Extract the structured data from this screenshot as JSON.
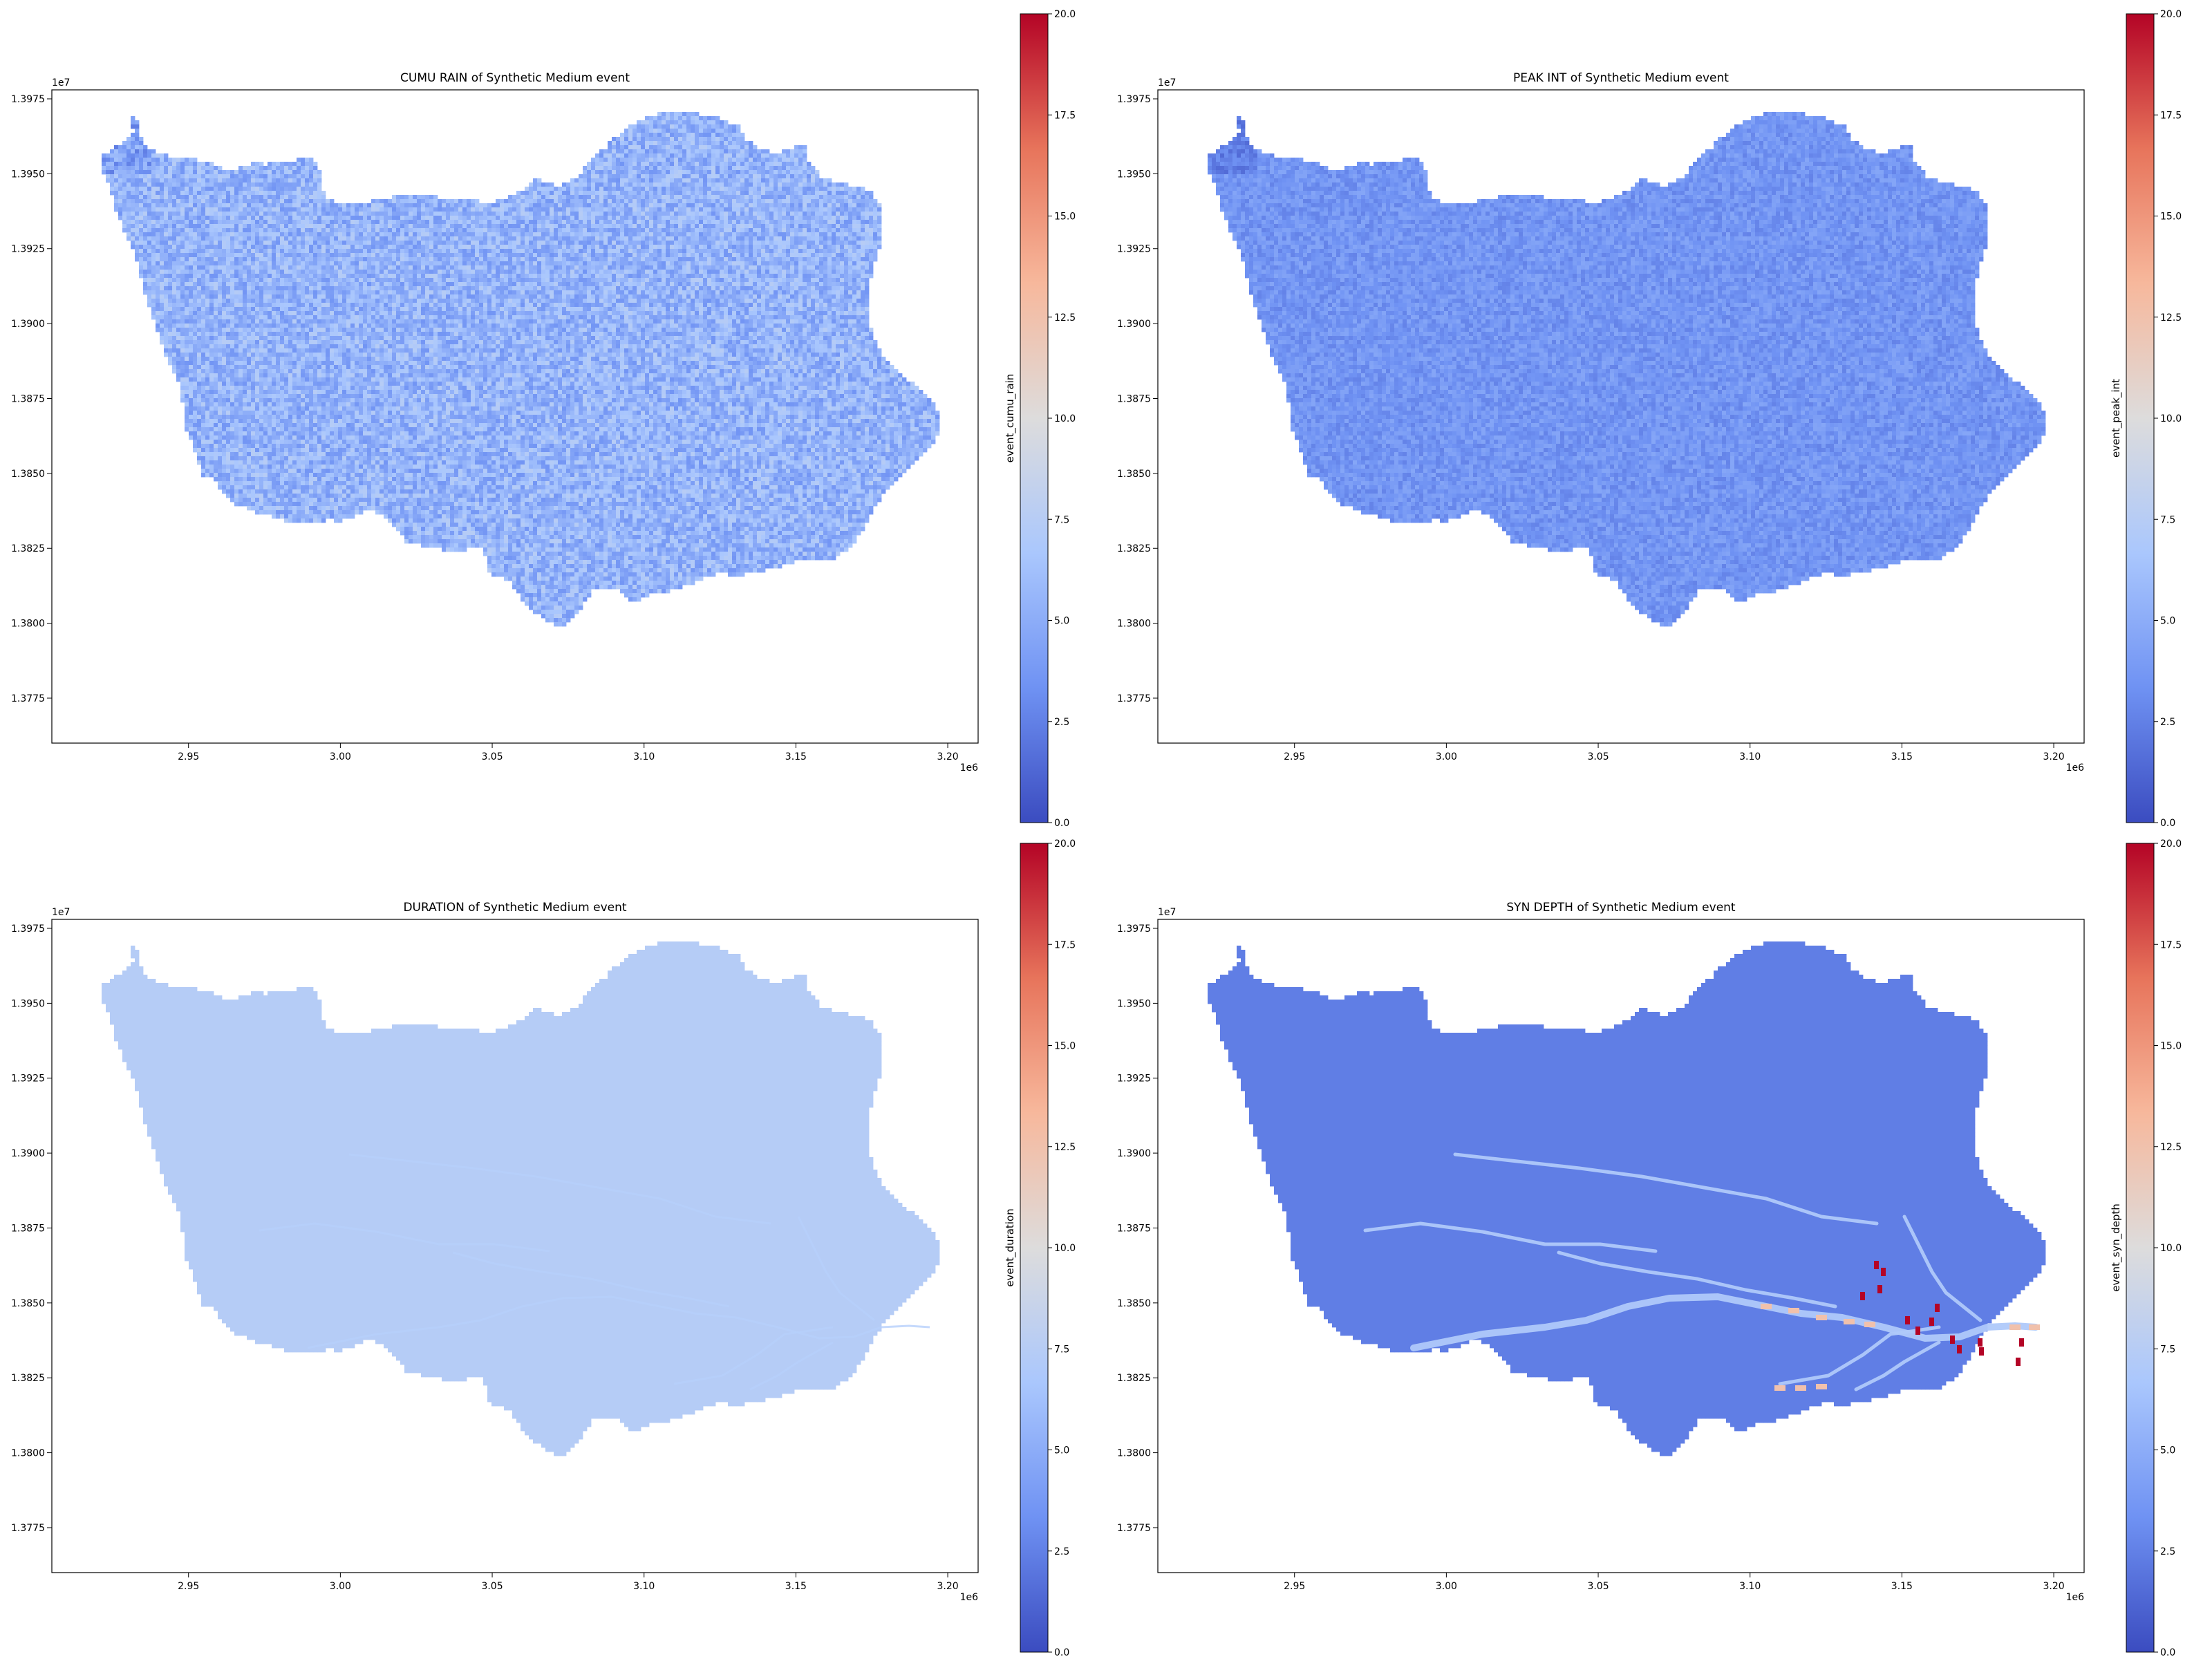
{
  "figure": {
    "cmap": "coolwarm",
    "cmap_stops": [
      "#3b4cc0",
      "#6f92f3",
      "#aac7fd",
      "#dddcdc",
      "#f7b89c",
      "#e7745b",
      "#b40426"
    ]
  },
  "chart_data": [
    {
      "type": "heatmap",
      "title": "CUMU RAIN of Synthetic Medium event",
      "colorbar_label": "event_cumu_rain",
      "clim": [
        0.0,
        20.0
      ],
      "colorbar_ticks": [
        "0.0",
        "2.5",
        "5.0",
        "7.5",
        "10.0",
        "12.5",
        "15.0",
        "17.5",
        "20.0"
      ],
      "xlim": [
        2.905,
        3.21
      ],
      "ylim": [
        1.376,
        1.3978
      ],
      "x_ticks": [
        "2.95",
        "3.00",
        "3.05",
        "3.10",
        "3.15",
        "3.20"
      ],
      "y_ticks": [
        "1.3775",
        "1.3800",
        "1.3825",
        "1.3850",
        "1.3875",
        "1.3900",
        "1.3925",
        "1.3950",
        "1.3975"
      ],
      "x_offset": "1e6",
      "y_offset": "1e7",
      "typical_value": 5.5,
      "value_spread": 2.0,
      "texture": "noise"
    },
    {
      "type": "heatmap",
      "title": "PEAK INT of Synthetic Medium event",
      "colorbar_label": "event_peak_int",
      "clim": [
        0.0,
        20.0
      ],
      "colorbar_ticks": [
        "0.0",
        "2.5",
        "5.0",
        "7.5",
        "10.0",
        "12.5",
        "15.0",
        "17.5",
        "20.0"
      ],
      "xlim": [
        2.905,
        3.21
      ],
      "ylim": [
        1.376,
        1.3978
      ],
      "x_ticks": [
        "2.95",
        "3.00",
        "3.05",
        "3.10",
        "3.15",
        "3.20"
      ],
      "y_ticks": [
        "1.3775",
        "1.3800",
        "1.3825",
        "1.3850",
        "1.3875",
        "1.3900",
        "1.3925",
        "1.3950",
        "1.3975"
      ],
      "x_offset": "1e6",
      "y_offset": "1e7",
      "typical_value": 3.6,
      "value_spread": 1.0,
      "texture": "noise"
    },
    {
      "type": "heatmap",
      "title": "DURATION of Synthetic Medium event",
      "colorbar_label": "event_duration",
      "clim": [
        0.0,
        20.0
      ],
      "colorbar_ticks": [
        "0.0",
        "2.5",
        "5.0",
        "7.5",
        "10.0",
        "12.5",
        "15.0",
        "17.5",
        "20.0"
      ],
      "xlim": [
        2.905,
        3.21
      ],
      "ylim": [
        1.376,
        1.3978
      ],
      "x_ticks": [
        "2.95",
        "3.00",
        "3.05",
        "3.10",
        "3.15",
        "3.20"
      ],
      "y_ticks": [
        "1.3775",
        "1.3800",
        "1.3825",
        "1.3850",
        "1.3875",
        "1.3900",
        "1.3925",
        "1.3950",
        "1.3975"
      ],
      "x_offset": "1e6",
      "y_offset": "1e7",
      "typical_value": 7.4,
      "value_spread": 0.0,
      "texture": "uniform"
    },
    {
      "type": "heatmap",
      "title": "SYN DEPTH of Synthetic Medium event",
      "colorbar_label": "event_syn_depth",
      "clim": [
        0.0,
        20.0
      ],
      "colorbar_ticks": [
        "0.0",
        "2.5",
        "5.0",
        "7.5",
        "10.0",
        "12.5",
        "15.0",
        "17.5",
        "20.0"
      ],
      "xlim": [
        2.905,
        3.21
      ],
      "ylim": [
        1.376,
        1.3978
      ],
      "x_ticks": [
        "2.95",
        "3.00",
        "3.05",
        "3.10",
        "3.15",
        "3.20"
      ],
      "y_ticks": [
        "1.3775",
        "1.3800",
        "1.3825",
        "1.3850",
        "1.3875",
        "1.3900",
        "1.3925",
        "1.3950",
        "1.3975"
      ],
      "x_offset": "1e6",
      "y_offset": "1e7",
      "typical_value": 2.4,
      "value_spread": 0.0,
      "texture": "uniform",
      "channel_value": 7.0,
      "hotspot_values": [
        12.5,
        20.0
      ]
    }
  ]
}
